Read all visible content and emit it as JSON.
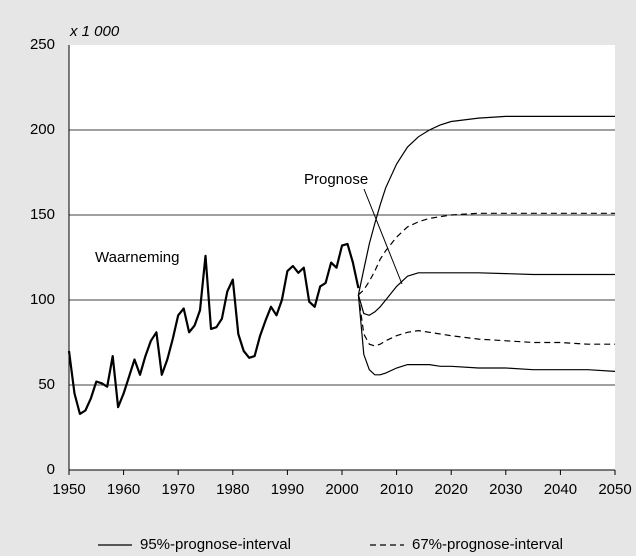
{
  "chart_data": {
    "type": "line",
    "unit_label": "x 1 000",
    "xlim": [
      1950,
      2050
    ],
    "xticks": [
      1950,
      1960,
      1970,
      1980,
      1990,
      2000,
      2010,
      2020,
      2030,
      2040,
      2050
    ],
    "ylim": [
      0,
      250
    ],
    "yticks": [
      0,
      50,
      100,
      150,
      200,
      250
    ],
    "grid": true,
    "series": [
      {
        "name": "Waarneming",
        "color": "#000000",
        "x": [
          1950,
          1951,
          1952,
          1953,
          1954,
          1955,
          1956,
          1957,
          1958,
          1959,
          1960,
          1961,
          1962,
          1963,
          1964,
          1965,
          1966,
          1967,
          1968,
          1969,
          1970,
          1971,
          1972,
          1973,
          1974,
          1975,
          1976,
          1977,
          1978,
          1979,
          1980,
          1981,
          1982,
          1983,
          1984,
          1985,
          1986,
          1987,
          1988,
          1989,
          1990,
          1991,
          1992,
          1993,
          1994,
          1995,
          1996,
          1997,
          1998,
          1999,
          2000,
          2001,
          2002,
          2003
        ],
        "values": [
          70,
          45,
          33,
          35,
          42,
          52,
          51,
          49,
          67,
          37,
          45,
          55,
          65,
          56,
          67,
          76,
          81,
          56,
          65,
          77,
          91,
          95,
          81,
          85,
          94,
          126,
          83,
          84,
          89,
          105,
          112,
          80,
          70,
          66,
          67,
          79,
          88,
          96,
          91,
          100,
          117,
          120,
          116,
          119,
          99,
          96,
          108,
          110,
          122,
          119,
          132,
          133,
          122,
          107
        ]
      },
      {
        "name": "Prognose",
        "color": "#000000",
        "x": [
          2003,
          2004,
          2005,
          2006,
          2007,
          2008,
          2010,
          2012,
          2014,
          2016,
          2018,
          2020,
          2025,
          2030,
          2035,
          2040,
          2045,
          2050
        ],
        "values": [
          103,
          92,
          91,
          93,
          96,
          100,
          108,
          114,
          116,
          116,
          116,
          116,
          116,
          115.5,
          115,
          115,
          115,
          115
        ]
      }
    ],
    "bands": [
      {
        "name": "95%-prognose-interval",
        "dash": "solid",
        "x": [
          2003,
          2004,
          2005,
          2006,
          2007,
          2008,
          2010,
          2012,
          2014,
          2016,
          2018,
          2020,
          2025,
          2030,
          2035,
          2040,
          2045,
          2050
        ],
        "upper": [
          103,
          118,
          133,
          145,
          156,
          166,
          180,
          190,
          196,
          200,
          203,
          205,
          207,
          208,
          208,
          208,
          208,
          208
        ],
        "lower": [
          103,
          68,
          59,
          56,
          56,
          57,
          60,
          62,
          62,
          62,
          61,
          61,
          60,
          60,
          59,
          59,
          59,
          58
        ]
      },
      {
        "name": "67%-prognose-interval",
        "dash": "dashed",
        "x": [
          2003,
          2004,
          2005,
          2006,
          2007,
          2008,
          2010,
          2012,
          2014,
          2016,
          2018,
          2020,
          2025,
          2030,
          2035,
          2040,
          2045,
          2050
        ],
        "upper": [
          103,
          106,
          111,
          117,
          124,
          129,
          137,
          143,
          146,
          148,
          149,
          150,
          151,
          151,
          151,
          151,
          151,
          151
        ],
        "lower": [
          103,
          80,
          74,
          73,
          74,
          76,
          79,
          81,
          82,
          81,
          80,
          79,
          77,
          76,
          75,
          75,
          74,
          74
        ]
      }
    ]
  }
}
